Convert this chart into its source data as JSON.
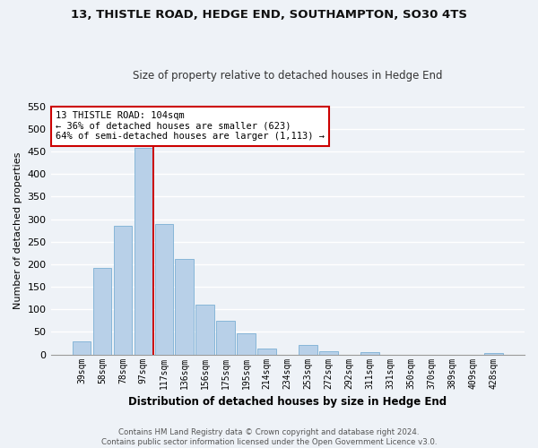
{
  "title": "13, THISTLE ROAD, HEDGE END, SOUTHAMPTON, SO30 4TS",
  "subtitle": "Size of property relative to detached houses in Hedge End",
  "xlabel": "Distribution of detached houses by size in Hedge End",
  "ylabel": "Number of detached properties",
  "bar_labels": [
    "39sqm",
    "58sqm",
    "78sqm",
    "97sqm",
    "117sqm",
    "136sqm",
    "156sqm",
    "175sqm",
    "195sqm",
    "214sqm",
    "234sqm",
    "253sqm",
    "272sqm",
    "292sqm",
    "311sqm",
    "331sqm",
    "350sqm",
    "370sqm",
    "389sqm",
    "409sqm",
    "428sqm"
  ],
  "bar_values": [
    30,
    192,
    285,
    457,
    290,
    212,
    110,
    74,
    47,
    13,
    0,
    22,
    7,
    0,
    5,
    0,
    0,
    0,
    0,
    0,
    3
  ],
  "bar_color": "#b8d0e8",
  "bar_edge_color": "#7bafd4",
  "ylim": [
    0,
    550
  ],
  "yticks": [
    0,
    50,
    100,
    150,
    200,
    250,
    300,
    350,
    400,
    450,
    500,
    550
  ],
  "vline_x_index": 3.5,
  "vline_color": "#cc0000",
  "annotation_title": "13 THISTLE ROAD: 104sqm",
  "annotation_line1": "← 36% of detached houses are smaller (623)",
  "annotation_line2": "64% of semi-detached houses are larger (1,113) →",
  "annotation_box_color": "#ffffff",
  "annotation_box_edge": "#cc0000",
  "footer_line1": "Contains HM Land Registry data © Crown copyright and database right 2024.",
  "footer_line2": "Contains public sector information licensed under the Open Government Licence v3.0.",
  "background_color": "#eef2f7",
  "grid_color": "#ffffff",
  "title_fontsize": 9.5,
  "subtitle_fontsize": 8.5
}
